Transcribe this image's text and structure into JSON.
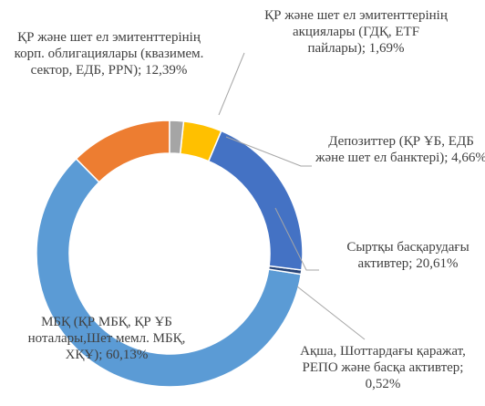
{
  "chart_data": {
    "type": "donut",
    "categories": [
      "ҚР және шет ел эмитенттерінің акциялары (ГДҚ, ETF пайлары);",
      "Депозиттер (ҚР ҰБ, ЕДБ және шет ел банктері);",
      "Сыртқы басқарудағы активтер;",
      "Ақша, Шоттардағы қаражат, РЕПО және басқа активтер;",
      "МБҚ (ҚР МБҚ, ҚР ҰБ ноталары,Шет мемл. МБҚ, ХҚҰ);",
      "ҚР және шет ел эмитенттерінің корп. облигациялары (квазимем. сектор, ЕДБ, РРN);"
    ],
    "values": [
      1.69,
      4.66,
      20.61,
      0.52,
      60.13,
      12.39
    ],
    "value_labels": [
      "1,69%",
      "4,66%",
      "20,61%",
      "0,52%",
      "60,13%",
      "12,39%"
    ],
    "colors": [
      "#a5a5a5",
      "#ffc000",
      "#4472c4",
      "#264478",
      "#5b9bd5",
      "#ed7d31"
    ]
  }
}
